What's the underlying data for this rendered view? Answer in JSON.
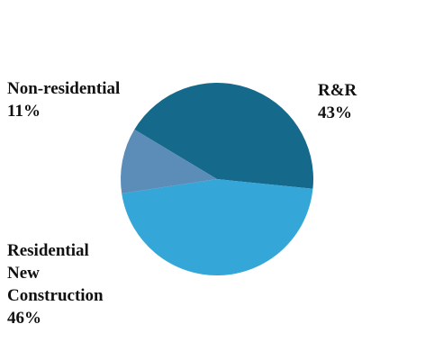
{
  "chart_data": {
    "type": "pie",
    "title": "",
    "slices": [
      {
        "label_lines": [
          "R&R"
        ],
        "percent_label": "43%",
        "value": 43,
        "color": "#156a8c"
      },
      {
        "label_lines": [
          "Residential",
          "New",
          "Construction"
        ],
        "percent_label": "46%",
        "value": 46,
        "color": "#35a6d8"
      },
      {
        "label_lines": [
          "Non-residential"
        ],
        "percent_label": "11%",
        "value": 11,
        "color": "#5b8db8"
      }
    ]
  }
}
